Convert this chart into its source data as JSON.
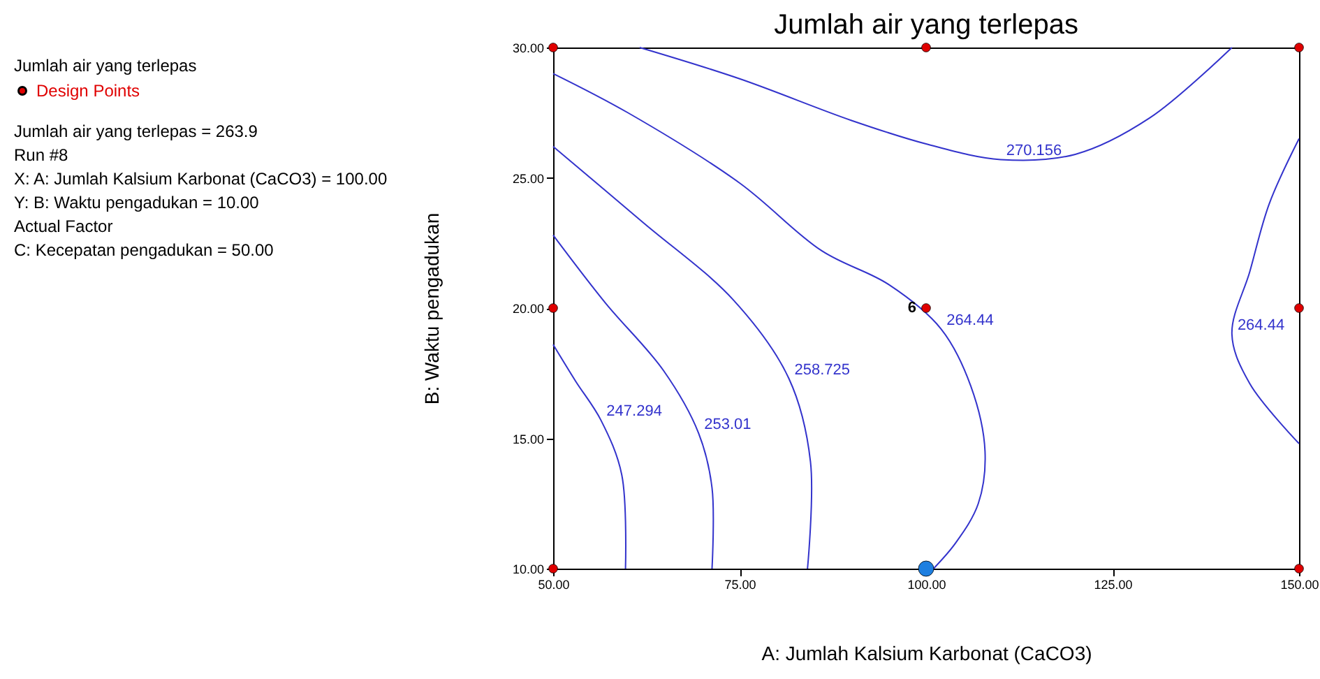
{
  "chart_data": {
    "type": "line",
    "title": "Jumlah air yang terlepas",
    "xlabel": "A: Jumlah Kalsium Karbonat (CaCO3)",
    "ylabel": "B: Waktu pengadukan",
    "legend_title": "Jumlah air yang terlepas",
    "legend": "top left",
    "annotations": [
      "Jumlah air yang terlepas = 263.9",
      "Run #8",
      "X: A: Jumlah Kalsium Karbonat (CaCO3) = 100.00",
      "Y: B: Waktu pengadukan = 10.00",
      "Actual Factor",
      "C: Kecepatan pengadukan = 50.00",
      {
        "text": "6",
        "x": 100,
        "y": 20
      }
    ],
    "xlim": [
      50,
      150
    ],
    "xticks": [
      {
        "value": 50,
        "label": "50.00"
      },
      {
        "value": 75,
        "label": "75.00"
      },
      {
        "value": 100,
        "label": "100.00"
      },
      {
        "value": 125,
        "label": "125.00"
      },
      {
        "value": 150,
        "label": "150.00"
      }
    ],
    "ylim": [
      10,
      30
    ],
    "yticks": [
      {
        "value": 10,
        "label": "10.00"
      },
      {
        "value": 15,
        "label": "15.00"
      },
      {
        "value": 20,
        "label": "20.00"
      },
      {
        "value": 25,
        "label": "25.00"
      },
      {
        "value": 30,
        "label": "30.00"
      }
    ],
    "grid": false,
    "series": [
      {
        "name": "270.156",
        "color": "#3333cc",
        "x": [
          61.6,
          75,
          90,
          100,
          110,
          120,
          130,
          141
        ],
        "values": [
          30,
          28.8,
          27.2,
          26.3,
          25.7,
          25.9,
          27.3,
          30
        ]
      },
      {
        "name": "264.44",
        "color": "#3333cc",
        "x": [
          50,
          60,
          75,
          86,
          95,
          102,
          106,
          107.9,
          107,
          104,
          101
        ],
        "values": [
          29,
          27.5,
          24.8,
          22.2,
          20.9,
          19.2,
          17,
          14.5,
          12.5,
          11,
          10
        ]
      },
      {
        "name": "264.44",
        "color": "#3333cc",
        "x": [
          150,
          146,
          143.4,
          141,
          143.4,
          150
        ],
        "values": [
          26.5,
          24,
          21.4,
          19,
          17.1,
          14.8
        ]
      },
      {
        "name": "258.725",
        "color": "#3333cc",
        "x": [
          50,
          62,
          74.2,
          81.6,
          84.5,
          84.1
        ],
        "values": [
          26.2,
          23.3,
          20.3,
          17.3,
          14.1,
          10
        ]
      },
      {
        "name": "253.01",
        "color": "#3333cc",
        "x": [
          50,
          57,
          64.8,
          69.5,
          71.3,
          71.3
        ],
        "values": [
          22.8,
          20.2,
          17.6,
          15.2,
          13.1,
          10
        ]
      },
      {
        "name": "247.294",
        "color": "#3333cc",
        "x": [
          50,
          53,
          56.4,
          59.2,
          59.7
        ],
        "values": [
          18.6,
          17.2,
          15.7,
          13.6,
          10
        ]
      },
      {
        "name": "Design Points",
        "type": "scatter",
        "marker": "circle",
        "color": "#e00000",
        "x": [
          50,
          100,
          150,
          50,
          100,
          150,
          50,
          150
        ],
        "values": [
          30,
          30,
          30,
          20,
          20,
          20,
          10,
          10
        ]
      },
      {
        "type": "scatter",
        "marker": "circle",
        "color": "#1e7fe0",
        "x": [
          100
        ],
        "values": [
          10
        ]
      }
    ]
  }
}
